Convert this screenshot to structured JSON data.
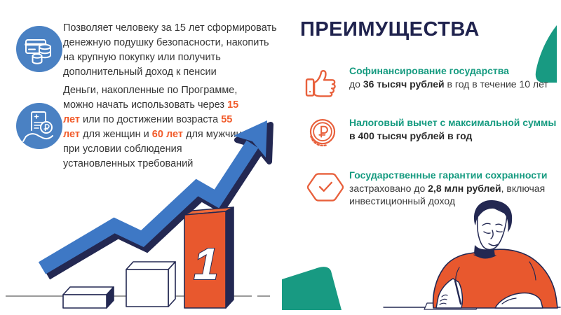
{
  "benefits": {
    "title": "ПРЕИМУЩЕСТВА",
    "items": [
      {
        "icon": "thumbs-up-icon",
        "title": "Софинансирование государства",
        "segments": [
          {
            "t": "до "
          },
          {
            "t": "36 тысяч рублей",
            "s": "bold"
          },
          {
            "t": " в год в течение 10 лет"
          }
        ]
      },
      {
        "icon": "ruble-coin-icon",
        "title": "Налоговый вычет с максимальной суммы",
        "segments": [
          {
            "t": "в 400 тысяч рублей в год",
            "s": "bold"
          }
        ]
      },
      {
        "icon": "hexagon-check-icon",
        "title": "Государственные гарантии сохранности",
        "segments": [
          {
            "t": "застраховано до "
          },
          {
            "t": "2,8 млн рублей",
            "s": "bold"
          },
          {
            "t": ", включая инвестиционный доход"
          }
        ]
      }
    ]
  },
  "left_features": [
    {
      "icon": "card-coins-icon",
      "segments": [
        {
          "t": "Позволяет человеку за 15 лет сформировать денежную подушку безопасности, накопить на крупную покупку или получить дополнительный доход к пенсии"
        }
      ]
    },
    {
      "icon": "document-ruble-hand-icon",
      "segments": [
        {
          "t": "Деньги, накопленные по Программе, можно начать использовать через "
        },
        {
          "t": "15 лет",
          "s": "accent"
        },
        {
          "t": " или по достижении возраста "
        },
        {
          "t": "55 лет",
          "s": "accent"
        },
        {
          "t": " для женщин и "
        },
        {
          "t": "60 лет",
          "s": "accent"
        },
        {
          "t": " для мужчин, при условии соблюдения установленных требований"
        }
      ]
    }
  ],
  "growth_chart": {
    "podium_rank": "1"
  },
  "colors": {
    "navy": "#232852",
    "icon_blue": "#4a81c3",
    "arrow_blue": "#3e78c5",
    "orange": "#e8582e",
    "accent_orange": "#f15a29",
    "teal": "#169b80",
    "teal_shape": "#189a82",
    "text": "#343434",
    "baseline_gray": "#9b9b9b"
  }
}
